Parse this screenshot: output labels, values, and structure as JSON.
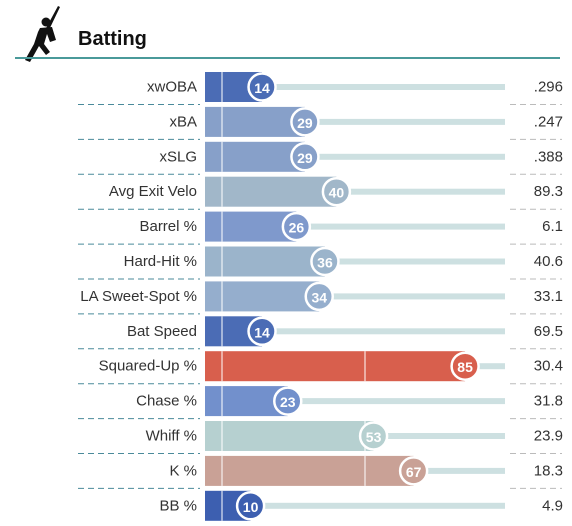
{
  "chart_data": {
    "type": "bar",
    "title": "Batting",
    "categories": [
      "xwOBA",
      "xBA",
      "xSLG",
      "Avg Exit Velo",
      "Barrel %",
      "Hard-Hit %",
      "LA Sweet-Spot %",
      "Bat Speed",
      "Squared-Up %",
      "Chase %",
      "Whiff %",
      "K %",
      "BB %"
    ],
    "values": [
      14,
      29,
      29,
      40,
      26,
      36,
      34,
      14,
      85,
      23,
      53,
      67,
      10
    ],
    "stat_values": [
      ".296",
      ".247",
      ".388",
      "89.3",
      "6.1",
      "40.6",
      "33.1",
      "69.5",
      "30.4",
      "31.8",
      "23.9",
      "18.3",
      "4.9"
    ],
    "colors": [
      "#4b6cb5",
      "#87a0c9",
      "#87a0c9",
      "#a1b7c9",
      "#7f99cc",
      "#9bb4cb",
      "#95aecd",
      "#4b6cb5",
      "#d85f4d",
      "#7290cc",
      "#b6d0d0",
      "#c9a196",
      "#3d5fb0"
    ],
    "xlim": [
      0,
      100
    ]
  }
}
